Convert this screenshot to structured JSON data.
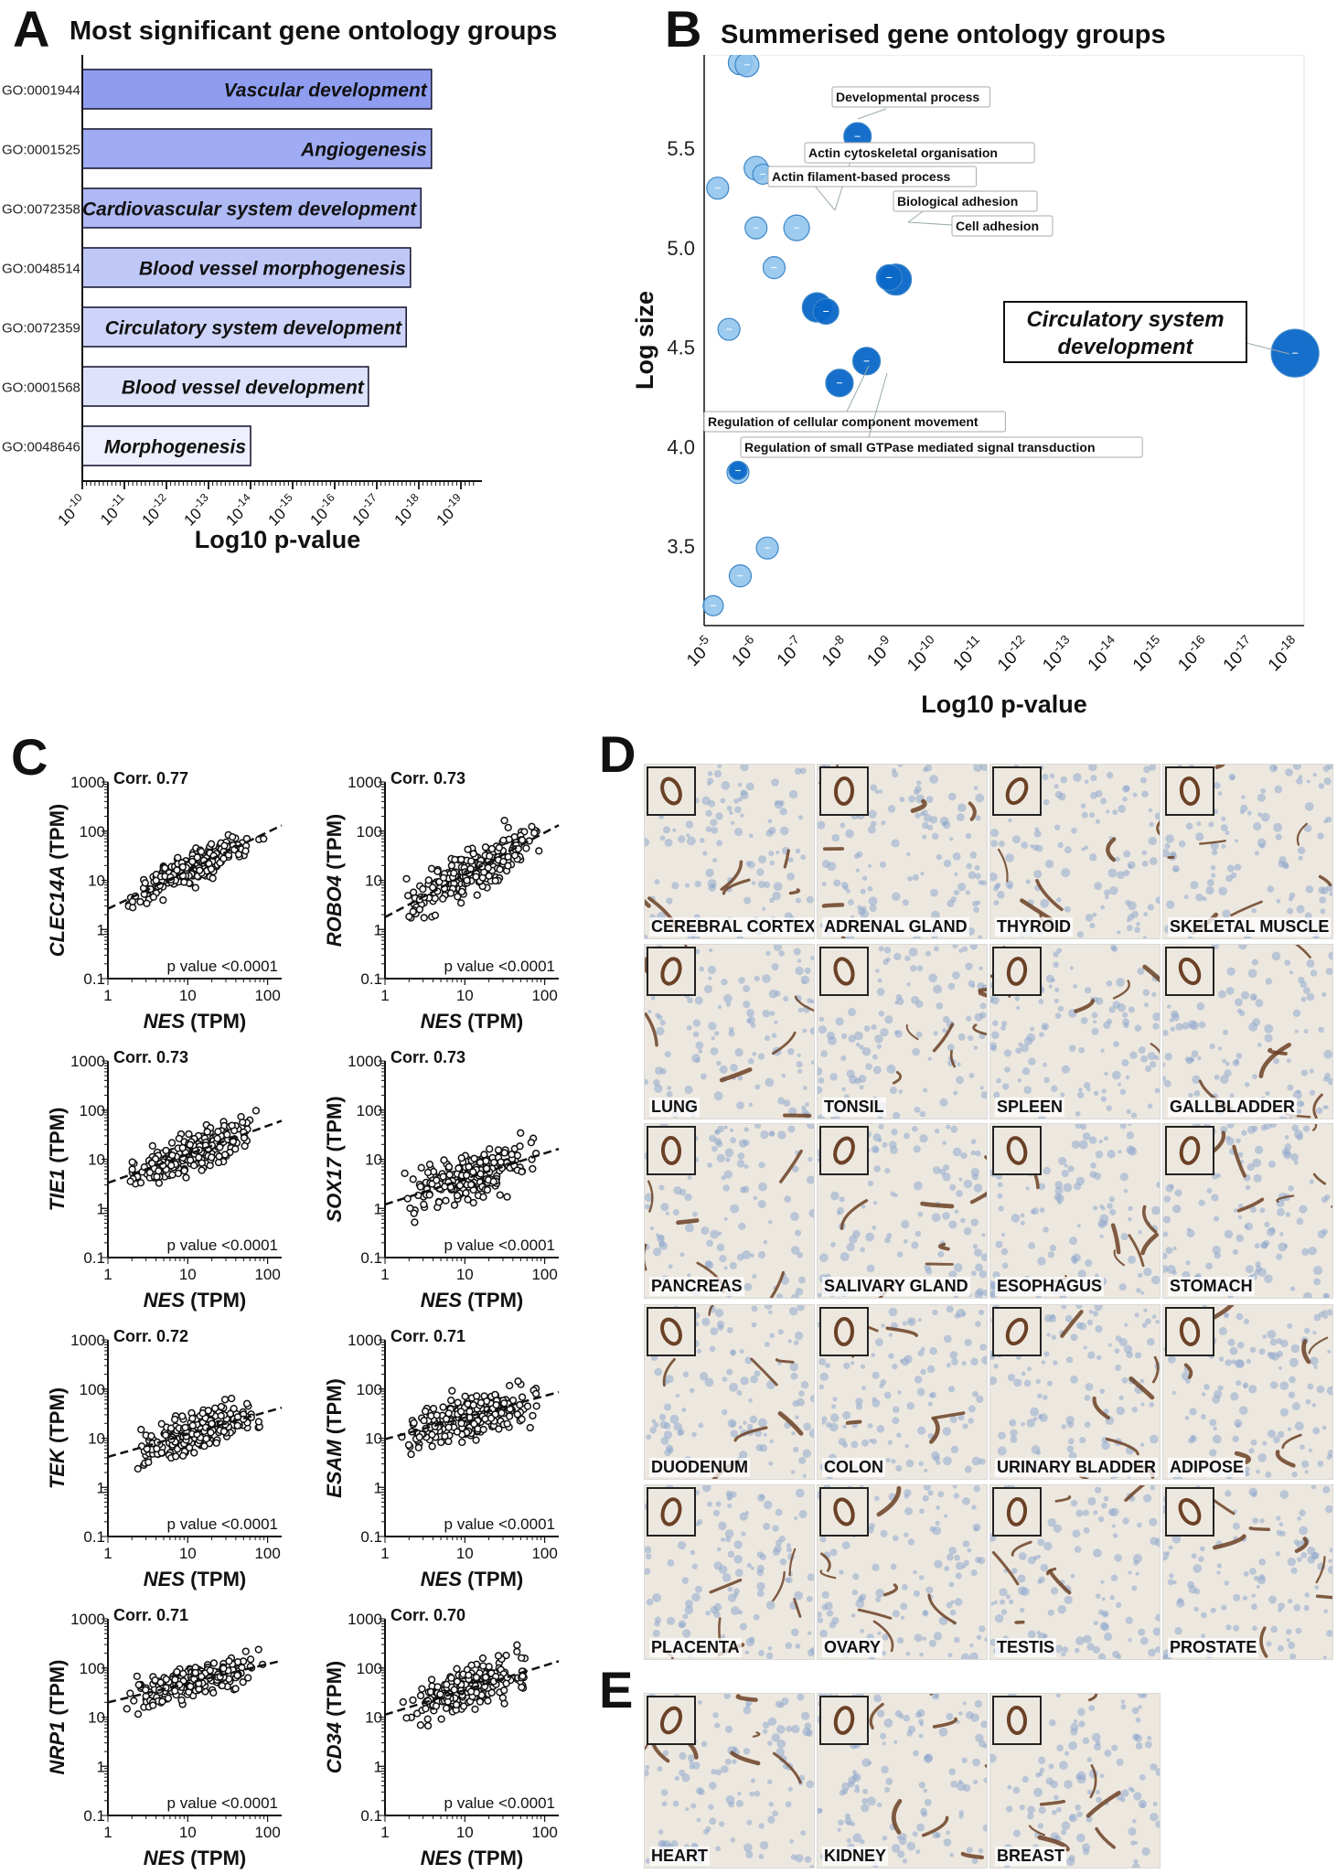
{
  "panels": {
    "A": {
      "letter": "A",
      "title": "Most significant gene ontology groups"
    },
    "B": {
      "letter": "B",
      "title": "Summerised gene ontology groups"
    },
    "C": {
      "letter": "C"
    },
    "D": {
      "letter": "D"
    },
    "E": {
      "letter": "E"
    }
  },
  "colors": {
    "bar_dark": "#8f9df0",
    "bar_light": "#eef0fd",
    "bar_edge": "#1c1c38",
    "bubble_dark": "#0a67c8",
    "bubble_light": "#8cc2ec",
    "bubble_edge": "#3c86c8",
    "tissue_bg": "#ede8df",
    "cell_blue": "#8fa8cc",
    "vessel_brown": "#6b4126"
  },
  "chart_data": [
    {
      "id": "A",
      "type": "bar",
      "orientation": "horizontal",
      "title": "Most significant gene ontology groups",
      "xlabel": "Log10 p-value",
      "ylabel": "",
      "x_ticks": [
        "10-10",
        "10-11",
        "10-12",
        "10-13",
        "10-14",
        "10-15",
        "10-16",
        "10-17",
        "10-18",
        "10-19"
      ],
      "x_tick_exponents": [
        -10,
        -11,
        -12,
        -13,
        -14,
        -15,
        -16,
        -17,
        -18,
        -19
      ],
      "xlim": [
        -10,
        -19.5
      ],
      "categories": [
        "GO:0001944",
        "GO:0001525",
        "GO:0072358",
        "GO:0048514",
        "GO:0072359",
        "GO:0001568",
        "GO:0048646"
      ],
      "bar_labels": [
        "Vascular development",
        "Angiogenesis",
        "Cardiovascular system development",
        "Blood vessel morphogenesis",
        "Circulatory system development",
        "Blood vessel development",
        "Morphogenesis"
      ],
      "values": [
        -18.3,
        -18.3,
        -18.05,
        -17.8,
        -17.7,
        -16.8,
        -14.0
      ]
    },
    {
      "id": "B",
      "type": "scatter",
      "title": "Summerised gene ontology groups",
      "xlabel": "Log10 p-value",
      "ylabel": "Log size",
      "x_ticks": [
        "10-5",
        "10-6",
        "10-7",
        "10-8",
        "10-9",
        "10-10",
        "10-11",
        "10-12",
        "10-13",
        "10-14",
        "10-15",
        "10-16",
        "10-17",
        "10-18"
      ],
      "x_tick_exponents": [
        -5,
        -6,
        -7,
        -8,
        -9,
        -10,
        -11,
        -12,
        -13,
        -14,
        -15,
        -16,
        -17,
        -18
      ],
      "xlim": [
        -5,
        -18.3
      ],
      "ylim": [
        3.1,
        5.97
      ],
      "y_ticks": [
        3.5,
        4.0,
        4.5,
        5.0,
        5.5
      ],
      "y_tick_labels": [
        "3.5",
        "4.0",
        "4.5",
        "5.0",
        "5.5"
      ],
      "points": [
        {
          "x": -5.8,
          "y": 5.93,
          "size": 13,
          "shade": "light"
        },
        {
          "x": -5.95,
          "y": 5.92,
          "size": 13,
          "shade": "light"
        },
        {
          "x": -5.3,
          "y": 5.3,
          "size": 12,
          "shade": "light"
        },
        {
          "x": -6.15,
          "y": 5.4,
          "size": 13,
          "shade": "light"
        },
        {
          "x": -6.3,
          "y": 5.37,
          "size": 11,
          "shade": "light"
        },
        {
          "x": -6.15,
          "y": 5.1,
          "size": 12,
          "shade": "light"
        },
        {
          "x": -7.05,
          "y": 5.1,
          "size": 14,
          "shade": "light"
        },
        {
          "x": -6.55,
          "y": 4.9,
          "size": 12,
          "shade": "light"
        },
        {
          "x": -5.55,
          "y": 4.59,
          "size": 12,
          "shade": "light"
        },
        {
          "x": -5.75,
          "y": 3.87,
          "size": 12,
          "shade": "light"
        },
        {
          "x": -5.8,
          "y": 3.35,
          "size": 12,
          "shade": "light"
        },
        {
          "x": -6.4,
          "y": 3.49,
          "size": 12,
          "shade": "light"
        },
        {
          "x": -5.2,
          "y": 3.2,
          "size": 11,
          "shade": "light"
        },
        {
          "x": -8.4,
          "y": 5.56,
          "size": 15,
          "shade": "dark",
          "label": "Developmental process"
        },
        {
          "x": -7.5,
          "y": 4.7,
          "size": 16,
          "shade": "dark",
          "label": "Actin filament-based process"
        },
        {
          "x": -7.7,
          "y": 4.68,
          "size": 14,
          "shade": "dark",
          "label": "Actin cytoskeletal organisation"
        },
        {
          "x": -9.25,
          "y": 4.84,
          "size": 17,
          "shade": "dark",
          "label": "Biological adhesion"
        },
        {
          "x": -9.1,
          "y": 4.85,
          "size": 14,
          "shade": "dark",
          "label": "Cell adhesion"
        },
        {
          "x": -8.6,
          "y": 4.43,
          "size": 15,
          "shade": "dark",
          "label": "Regulation of small GTPase mediated signal transduction"
        },
        {
          "x": -8.0,
          "y": 4.32,
          "size": 15,
          "shade": "dark",
          "label": "Regulation of cellular component movement"
        },
        {
          "x": -5.75,
          "y": 3.88,
          "size": 10,
          "shade": "dark"
        },
        {
          "x": -18.1,
          "y": 4.47,
          "size": 26,
          "shade": "dark",
          "label": "Circulatory system development"
        }
      ],
      "annotations": [
        "Developmental process",
        "Actin cytoskeletal organisation",
        "Actin filament-based process",
        "Biological adhesion",
        "Cell adhesion",
        "Circulatory system development",
        "Regulation of cellular component movement",
        "Regulation of small GTPase mediated signal transduction"
      ]
    },
    {
      "id": "C",
      "type": "scatter",
      "xscale": "log",
      "yscale": "log",
      "xlabel_gene": "NES",
      "xlabel_unit": " (TPM)",
      "x_ticks": [
        "1",
        "10",
        "100"
      ],
      "y_ticks": [
        "0.1",
        "1",
        "10",
        "100",
        "1000"
      ],
      "xlim": [
        1,
        150
      ],
      "ylim": [
        0.1,
        1000
      ],
      "plots": [
        {
          "gene": "CLEC14A",
          "unit": " (TPM)",
          "corr": "Corr. 0.77",
          "pvalue": "p value <0.0001",
          "slope": 0.78,
          "intercept": 0.42,
          "scatter": 0.22,
          "seed": 11
        },
        {
          "gene": "ROBO4",
          "unit": " (TPM)",
          "corr": "Corr. 0.73",
          "pvalue": "p value <0.0001",
          "slope": 0.86,
          "intercept": 0.25,
          "scatter": 0.32,
          "seed": 23
        },
        {
          "gene": "TIE1",
          "unit": " (TPM)",
          "corr": "Corr. 0.73",
          "pvalue": "p value <0.0001",
          "slope": 0.58,
          "intercept": 0.52,
          "scatter": 0.28,
          "seed": 37
        },
        {
          "gene": "SOX17",
          "unit": " (TPM)",
          "corr": "Corr. 0.73",
          "pvalue": "p value <0.0001",
          "slope": 0.52,
          "intercept": 0.08,
          "scatter": 0.32,
          "seed": 41
        },
        {
          "gene": "TEK",
          "unit": " (TPM)",
          "corr": "Corr. 0.72",
          "pvalue": "p value <0.0001",
          "slope": 0.46,
          "intercept": 0.62,
          "scatter": 0.28,
          "seed": 53
        },
        {
          "gene": "ESAM",
          "unit": " (TPM)",
          "corr": "Corr. 0.71",
          "pvalue": "p value <0.0001",
          "slope": 0.44,
          "intercept": 0.98,
          "scatter": 0.3,
          "seed": 67
        },
        {
          "gene": "NRP1",
          "unit": " (TPM)",
          "corr": "Corr. 0.71",
          "pvalue": "p value <0.0001",
          "slope": 0.39,
          "intercept": 1.3,
          "scatter": 0.22,
          "seed": 71
        },
        {
          "gene": "CD34",
          "unit": " (TPM)",
          "corr": "Corr. 0.70",
          "pvalue": "p value <0.0001",
          "slope": 0.5,
          "intercept": 1.05,
          "scatter": 0.32,
          "seed": 89
        }
      ]
    }
  ],
  "tissues_D": [
    "CEREBRAL CORTEX",
    "ADRENAL GLAND",
    "THYROID",
    "SKELETAL MUSCLE",
    "LUNG",
    "TONSIL",
    "SPLEEN",
    "GALLBLADDER",
    "PANCREAS",
    "SALIVARY GLAND",
    "ESOPHAGUS",
    "STOMACH",
    "DUODENUM",
    "COLON",
    "URINARY BLADDER",
    "ADIPOSE",
    "PLACENTA",
    "OVARY",
    "TESTIS",
    "PROSTATE"
  ],
  "tissues_E": [
    "HEART",
    "KIDNEY",
    "BREAST"
  ]
}
